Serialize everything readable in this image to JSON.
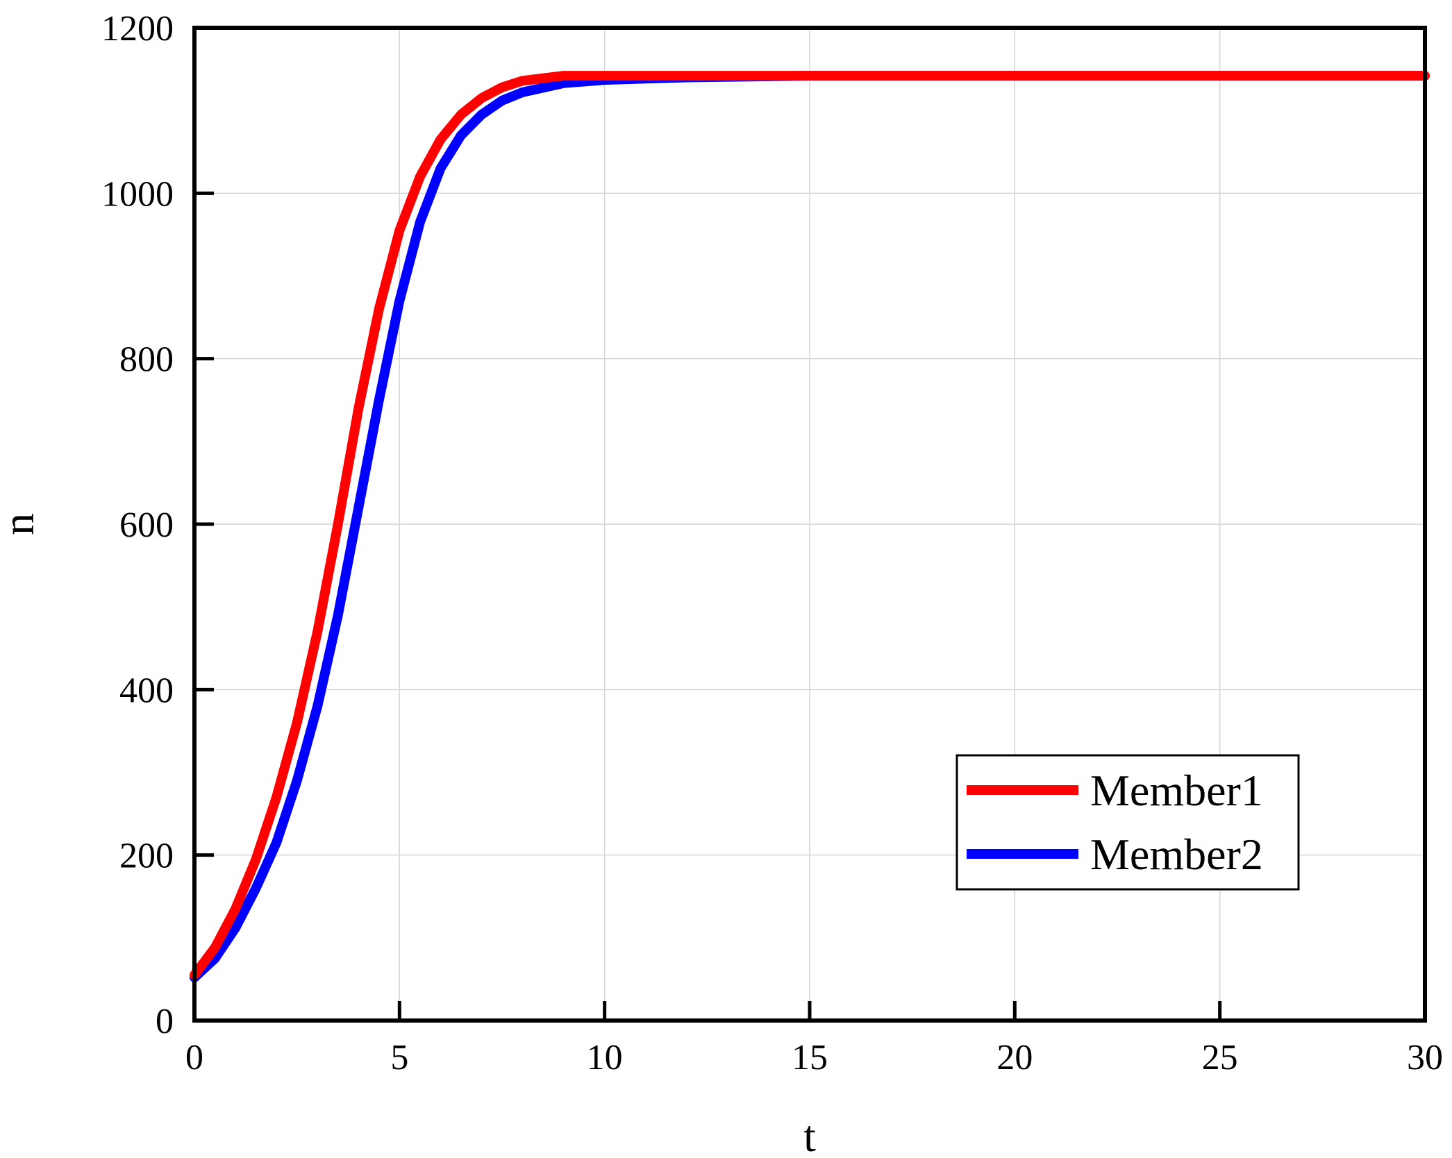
{
  "chart_data": {
    "type": "line",
    "title": "",
    "xlabel": "t",
    "ylabel": "n",
    "xlim": [
      0,
      30
    ],
    "ylim": [
      0,
      1200
    ],
    "xticks": [
      0,
      5,
      10,
      15,
      20,
      25,
      30
    ],
    "yticks": [
      0,
      200,
      400,
      600,
      800,
      1000,
      1200
    ],
    "grid": true,
    "legend_position": "bottom-right",
    "series": [
      {
        "name": "Member1",
        "color": "#ff0000",
        "x": [
          0,
          0.5,
          1,
          1.5,
          2,
          2.5,
          3,
          3.5,
          4,
          4.5,
          5,
          5.5,
          6,
          6.5,
          7,
          7.5,
          8,
          9,
          10,
          12,
          15,
          20,
          25,
          30
        ],
        "y": [
          55,
          88,
          135,
          195,
          270,
          360,
          470,
          600,
          740,
          860,
          955,
          1020,
          1065,
          1095,
          1115,
          1128,
          1136,
          1142,
          1142,
          1142,
          1142,
          1142,
          1142,
          1142
        ]
      },
      {
        "name": "Member2",
        "color": "#0000ff",
        "x": [
          0,
          0.5,
          1,
          1.5,
          2,
          2.5,
          3,
          3.5,
          4,
          4.5,
          5,
          5.5,
          6,
          6.5,
          7,
          7.5,
          8,
          9,
          10,
          12,
          15,
          20,
          25,
          30
        ],
        "y": [
          52,
          75,
          112,
          160,
          215,
          290,
          380,
          490,
          620,
          750,
          870,
          965,
          1030,
          1070,
          1095,
          1112,
          1122,
          1133,
          1137,
          1140,
          1142,
          1142,
          1142,
          1142
        ]
      }
    ]
  }
}
